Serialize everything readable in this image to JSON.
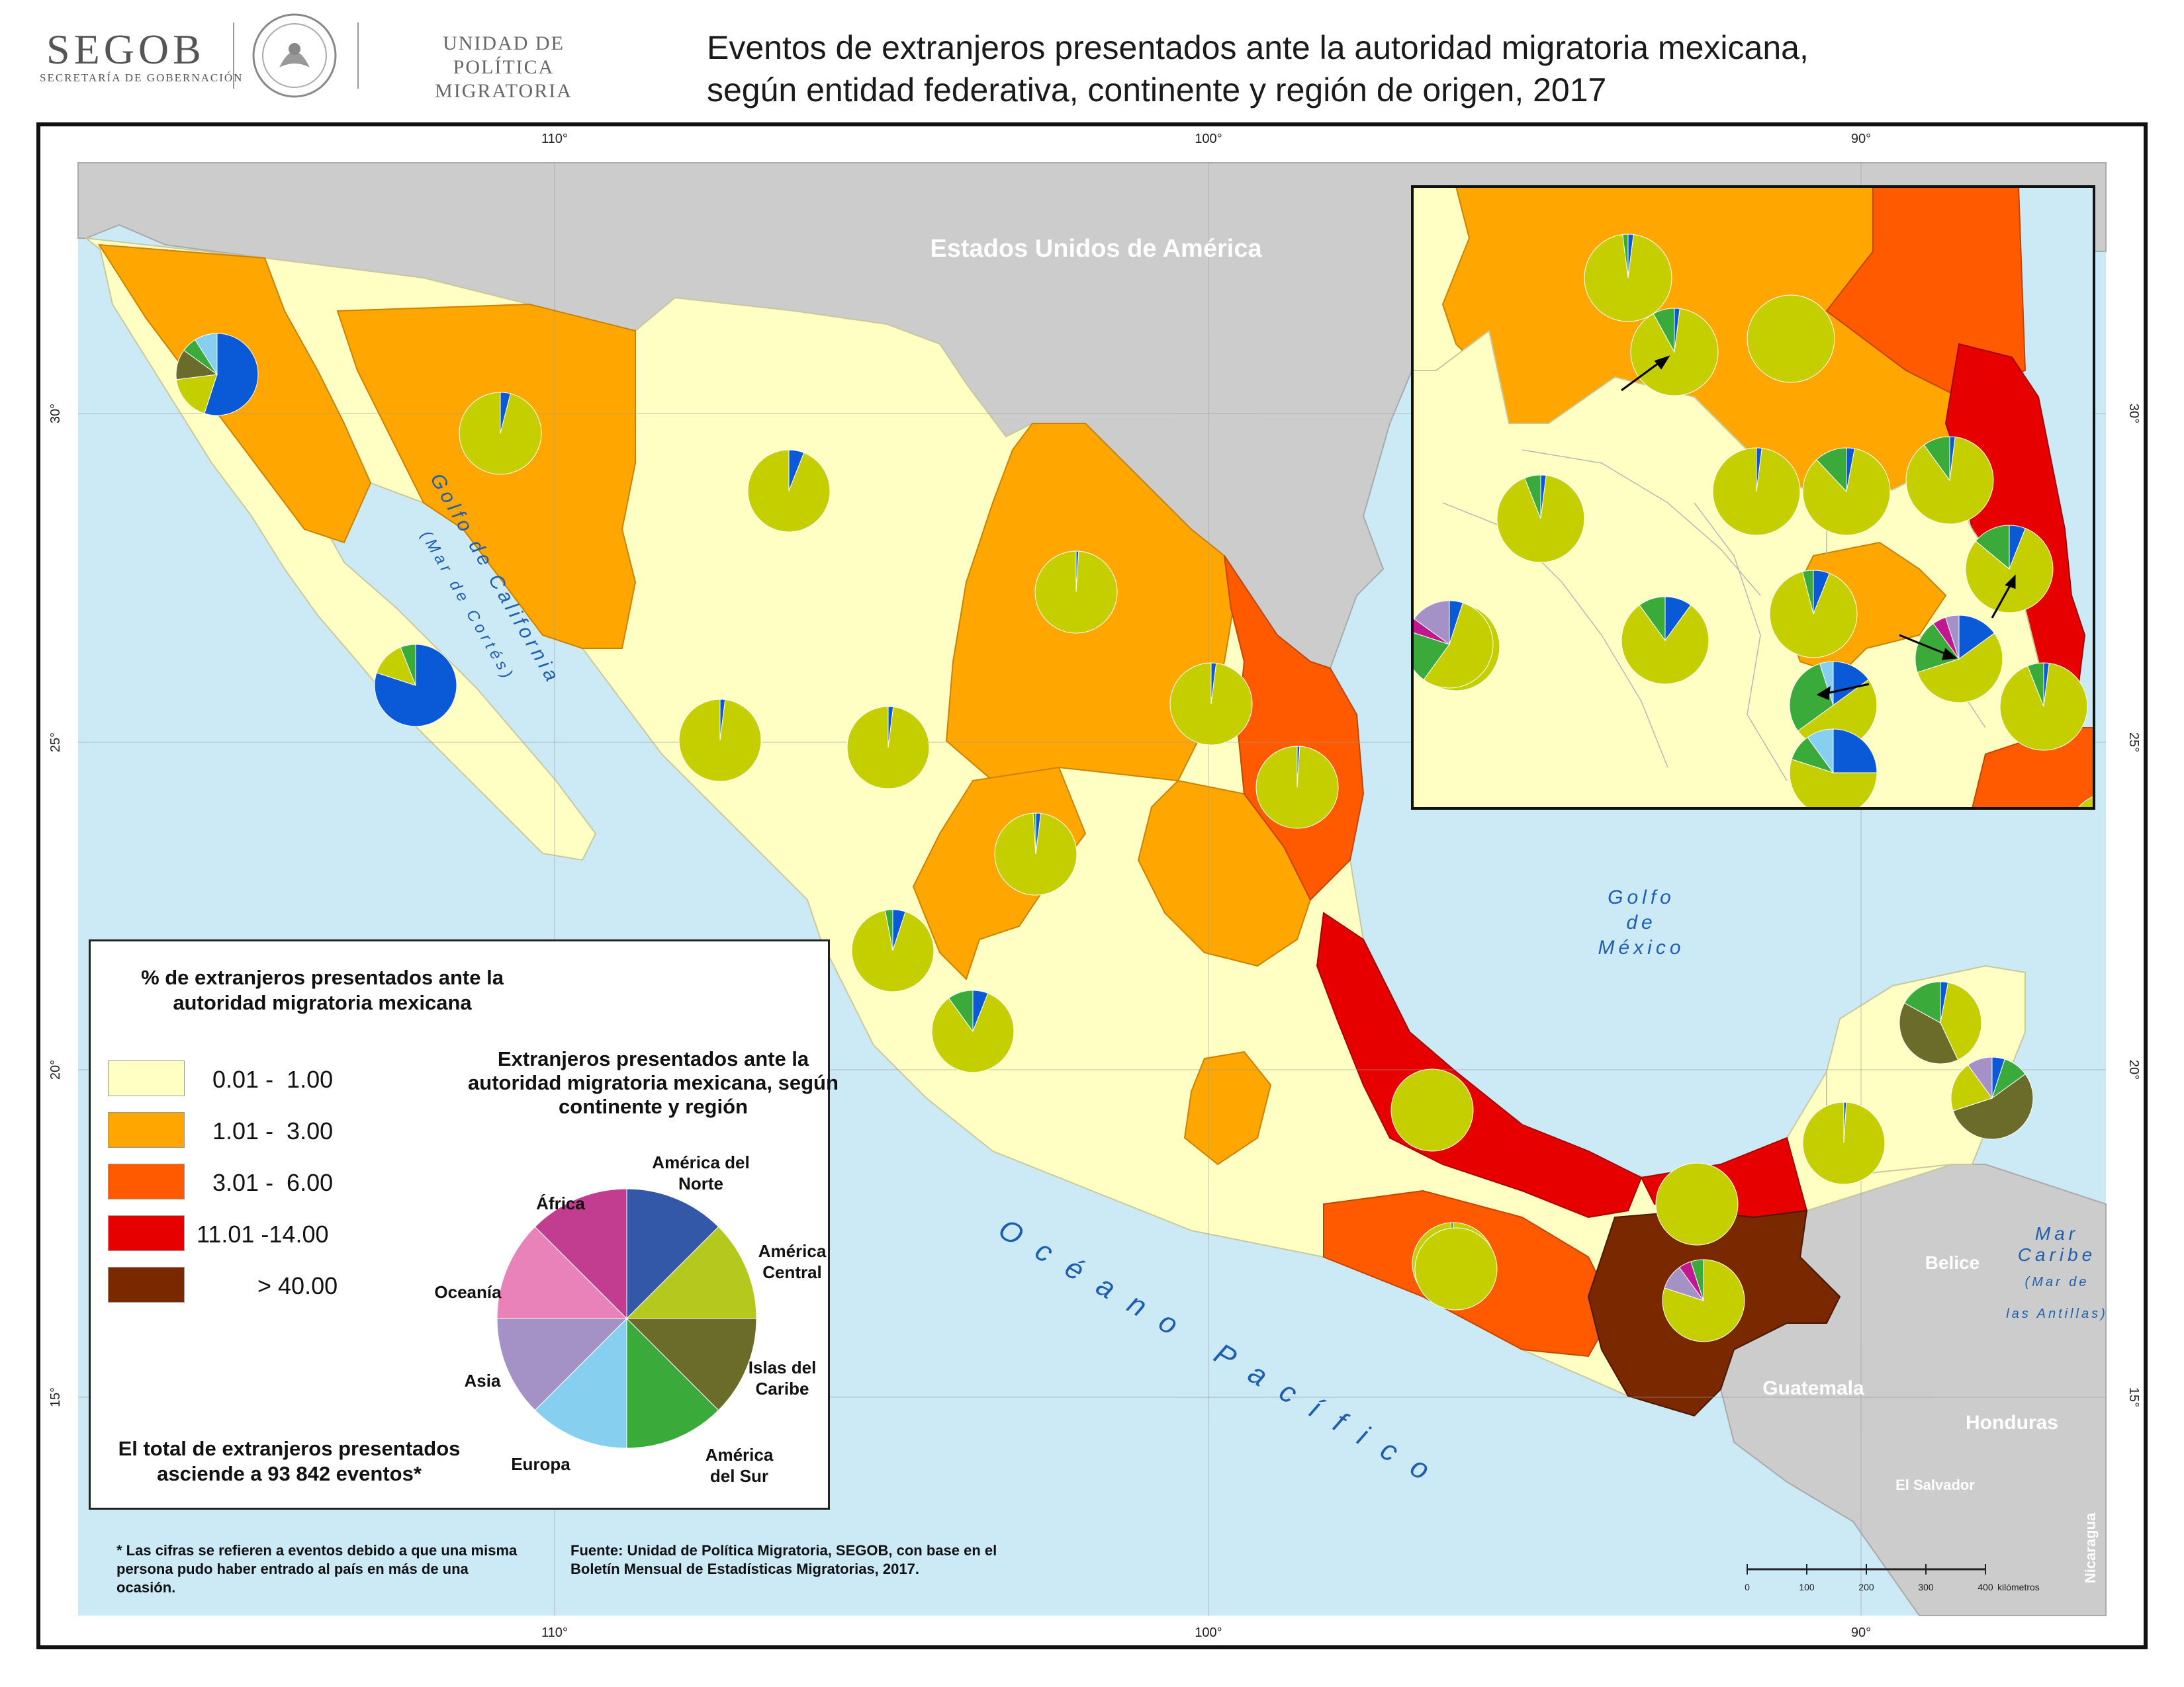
{
  "header": {
    "logo_word": "SEGOB",
    "logo_sub": "SECRETARÍA DE GOBERNACIÓN",
    "agency_line1": "UNIDAD DE POLÍTICA",
    "agency_line2": "MIGRATORIA",
    "title_line1": "Eventos de extranjeros presentados ante la autoridad migratoria mexicana,",
    "title_line2": "según entidad federativa, continente y región de origen, 2017"
  },
  "map": {
    "country_labels": {
      "usa": "Estados Unidos de América",
      "belize": "Belice",
      "guatemala": "Guatemala",
      "honduras": "Honduras",
      "el_salvador": "El Salvador",
      "nicaragua": "Nicaragua"
    },
    "water_labels": {
      "gulf_california_1": "Golfo de California",
      "gulf_california_2": "(Mar de Cortés)",
      "gulf_mexico_1": "Golfo",
      "gulf_mexico_2": "de",
      "gulf_mexico_3": "México",
      "pacific": "Océano Pacífico",
      "caribbean_1": "Mar",
      "caribbean_2": "Caribe",
      "caribbean_3": "(Mar de",
      "caribbean_4": "las Antillas)"
    },
    "grid": {
      "top": [
        "110°",
        "100°",
        "90°"
      ],
      "bottom": [
        "110°",
        "100°",
        "90°"
      ],
      "left": [
        "30°",
        "25°",
        "20°",
        "15°"
      ],
      "right": [
        "30°",
        "25°",
        "20°",
        "15°"
      ]
    },
    "scale": {
      "ticks": [
        "0",
        "100",
        "200",
        "300",
        "400"
      ],
      "unit": "kilómetros"
    }
  },
  "legend": {
    "title": "% de extranjeros presentados ante la autoridad migratoria mexicana",
    "classes": [
      {
        "label": "0.01 -  1.00",
        "color": "#ffffc4"
      },
      {
        "label": "1.01 -  3.00",
        "color": "#ffa600"
      },
      {
        "label": "3.01 -  6.00",
        "color": "#ff5a00"
      },
      {
        "label": "11.01 -14.00",
        "color": "#e60000"
      },
      {
        "label": "> 40.00",
        "color": "#7a2800"
      }
    ],
    "pie_title": "Extranjeros presentados ante la autoridad migratoria mexicana, según continente y región",
    "categories": [
      {
        "label": "América del Norte",
        "color": "#3358a8"
      },
      {
        "label": "América Central",
        "color": "#b4c81e"
      },
      {
        "label": "Islas del Caribe",
        "color": "#6b6b2a"
      },
      {
        "label": "América del Sur",
        "color": "#3aaa3a"
      },
      {
        "label": "Europa",
        "color": "#86cfee"
      },
      {
        "label": "Asia",
        "color": "#a491c6"
      },
      {
        "label": "Oceanía",
        "color": "#e882b8"
      },
      {
        "label": "África",
        "color": "#c23d8f"
      }
    ],
    "total": "El total de extranjeros presentados asciende a 93 842 eventos*"
  },
  "footnotes": {
    "note": "* Las cifras se refieren a eventos debido a que una misma persona pudo haber entrado al país en más de una ocasión.",
    "source": "Fuente: Unidad de Política Migratoria, SEGOB, con base en el Boletín Mensual de Estadísticas Migratorias, 2017."
  },
  "state_pies": [
    {
      "shares": [
        0.55,
        0.18,
        0.12,
        0.06,
        0.09
      ],
      "colors": [
        "#0a5ad8",
        "#c5cf00",
        "#6b6b2a",
        "#3aaa3a",
        "#86cfee"
      ]
    },
    {
      "shares": [
        0.04,
        0.96
      ],
      "colors": [
        "#0a5ad8",
        "#c5cf00"
      ]
    },
    {
      "shares": [
        0.06,
        0.94
      ],
      "colors": [
        "#0a5ad8",
        "#c5cf00"
      ]
    },
    {
      "shares": [
        0.8,
        0.14,
        0.06
      ],
      "colors": [
        "#0a5ad8",
        "#c5cf00",
        "#3aaa3a"
      ]
    },
    {
      "shares": [
        0.01,
        0.99
      ],
      "colors": [
        "#0a5ad8",
        "#c5cf00"
      ]
    },
    {
      "shares": [
        0.02,
        0.98
      ],
      "colors": [
        "#0a5ad8",
        "#c5cf00"
      ]
    },
    {
      "shares": [
        0.02,
        0.98
      ],
      "colors": [
        "#0a5ad8",
        "#c5cf00"
      ]
    },
    {
      "shares": [
        0.02,
        0.98
      ],
      "colors": [
        "#0a5ad8",
        "#c5cf00"
      ]
    },
    {
      "shares": [
        0.02,
        0.97,
        0.01
      ],
      "colors": [
        "#0a5ad8",
        "#c5cf00",
        "#3aaa3a"
      ]
    },
    {
      "shares": [
        0.01,
        0.99
      ],
      "colors": [
        "#0a5ad8",
        "#c5cf00"
      ]
    },
    {
      "shares": [
        0.05,
        0.92,
        0.03
      ],
      "colors": [
        "#0a5ad8",
        "#c5cf00",
        "#3aaa3a"
      ]
    },
    {
      "shares": [
        0.06,
        0.84,
        0.1
      ],
      "colors": [
        "#0a5ad8",
        "#c5cf00",
        "#3aaa3a"
      ]
    },
    {
      "shares": [
        1.0
      ],
      "colors": [
        "#c5cf00"
      ]
    },
    {
      "shares": [
        0.01,
        0.99
      ],
      "colors": [
        "#0a5ad8",
        "#c5cf00"
      ]
    },
    {
      "shares": [
        1.0
      ],
      "colors": [
        "#c5cf00"
      ]
    },
    {
      "shares": [
        0.99,
        0.01
      ],
      "colors": [
        "#c5cf00",
        "#3aaa3a"
      ]
    },
    {
      "shares": [
        1.0
      ],
      "colors": [
        "#c5cf00"
      ]
    },
    {
      "shares": [
        0.8,
        0.1,
        0.05,
        0.05
      ],
      "colors": [
        "#c5cf00",
        "#a491c6",
        "#c2188f",
        "#3aaa3a"
      ]
    },
    {
      "shares": [
        0.03,
        0.4,
        0.4,
        0.17
      ],
      "colors": [
        "#0a5ad8",
        "#c5cf00",
        "#6b6b2a",
        "#3aaa3a"
      ]
    },
    {
      "shares": [
        0.05,
        0.1,
        0.55,
        0.2,
        0.1
      ],
      "colors": [
        "#0a5ad8",
        "#3aaa3a",
        "#6b6b2a",
        "#c5cf00",
        "#a491c6"
      ]
    }
  ],
  "inset_pies": [
    {
      "shares": [
        0.02,
        0.96,
        0.02
      ],
      "colors": [
        "#0a5ad8",
        "#c5cf00",
        "#3aaa3a"
      ]
    },
    {
      "shares": [
        0.02,
        0.9,
        0.08
      ],
      "colors": [
        "#0a5ad8",
        "#c5cf00",
        "#3aaa3a"
      ]
    },
    {
      "shares": [
        1.0
      ],
      "colors": [
        "#c5cf00"
      ]
    },
    {
      "shares": [
        0.02,
        0.98
      ],
      "colors": [
        "#0a5ad8",
        "#c5cf00"
      ]
    },
    {
      "shares": [
        0.03,
        0.85,
        0.12
      ],
      "colors": [
        "#0a5ad8",
        "#c5cf00",
        "#3aaa3a"
      ]
    },
    {
      "shares": [
        0.02,
        0.88,
        0.1
      ],
      "colors": [
        "#0a5ad8",
        "#c5cf00",
        "#3aaa3a"
      ]
    },
    {
      "shares": [
        0.02,
        0.92,
        0.06
      ],
      "colors": [
        "#0a5ad8",
        "#c5cf00",
        "#3aaa3a"
      ]
    },
    {
      "shares": [
        0.06,
        0.8,
        0.14
      ],
      "colors": [
        "#0a5ad8",
        "#c5cf00",
        "#3aaa3a"
      ]
    },
    {
      "shares": [
        0.15,
        0.55,
        0.2,
        0.05,
        0.05
      ],
      "colors": [
        "#0a5ad8",
        "#c5cf00",
        "#3aaa3a",
        "#c2188f",
        "#a491c6"
      ]
    },
    {
      "shares": [
        0.06,
        0.9,
        0.04
      ],
      "colors": [
        "#0a5ad8",
        "#c5cf00",
        "#3aaa3a"
      ]
    },
    {
      "shares": [
        0.1,
        0.8,
        0.1
      ],
      "colors": [
        "#0a5ad8",
        "#c5cf00",
        "#3aaa3a"
      ]
    },
    {
      "shares": [
        0.03,
        0.92,
        0.05
      ],
      "colors": [
        "#0a5ad8",
        "#c5cf00",
        "#3aaa3a"
      ]
    },
    {
      "shares": [
        0.05,
        0.55,
        0.2,
        0.05,
        0.15
      ],
      "colors": [
        "#0a5ad8",
        "#c5cf00",
        "#3aaa3a",
        "#c2188f",
        "#a491c6"
      ]
    },
    {
      "shares": [
        0.15,
        0.5,
        0.3,
        0.05
      ],
      "colors": [
        "#0a5ad8",
        "#c5cf00",
        "#3aaa3a",
        "#86cfee"
      ]
    },
    {
      "shares": [
        0.02,
        0.92,
        0.06
      ],
      "colors": [
        "#0a5ad8",
        "#c5cf00",
        "#3aaa3a"
      ]
    },
    {
      "shares": [
        0.25,
        0.55,
        0.1,
        0.1
      ],
      "colors": [
        "#0a5ad8",
        "#c5cf00",
        "#3aaa3a",
        "#86cfee"
      ]
    },
    {
      "shares": [
        0.03,
        0.95,
        0.02
      ],
      "colors": [
        "#0a5ad8",
        "#c5cf00",
        "#3aaa3a"
      ]
    },
    {
      "shares": [
        0.05,
        0.87,
        0.08
      ],
      "colors": [
        "#0a5ad8",
        "#c5cf00",
        "#3aaa3a"
      ]
    }
  ]
}
